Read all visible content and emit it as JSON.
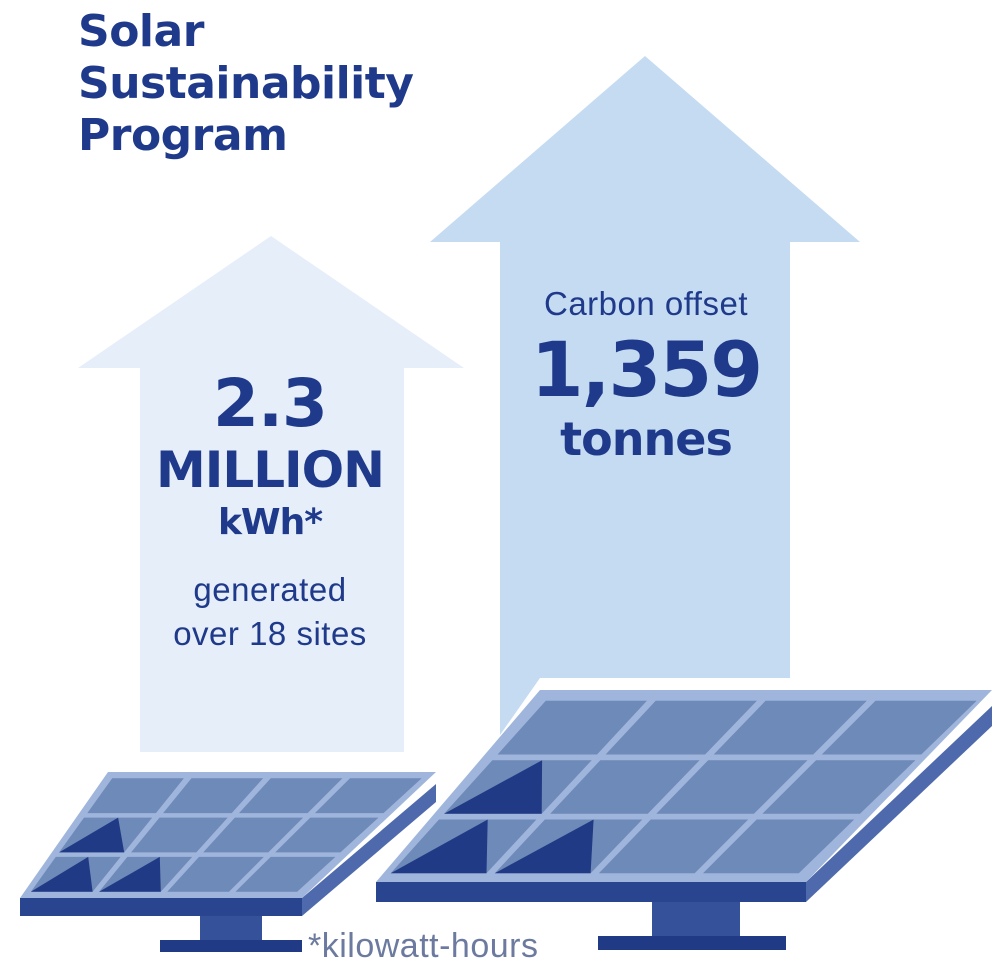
{
  "title": {
    "line1": "Solar",
    "line2": "Sustainability",
    "line3": "Program"
  },
  "left_stat": {
    "value": "2.3",
    "scale": "MILLION",
    "unit": "kWh*",
    "caption_line1": "generated",
    "caption_line2": "over 18 sites"
  },
  "right_stat": {
    "label": "Carbon offset",
    "value": "1,359",
    "unit": "tonnes"
  },
  "footnote": "*kilowatt-hours",
  "icons": [
    "up-arrow-icon",
    "solar-panel-icon"
  ],
  "colors": {
    "text": "#1f3a8a",
    "arrow_light": "#e6eef9",
    "arrow_medium": "#c5dbf2",
    "panel_cell": "#6e8ab8",
    "panel_dark": "#213a86",
    "panel_frame": "#9fb5dc"
  }
}
